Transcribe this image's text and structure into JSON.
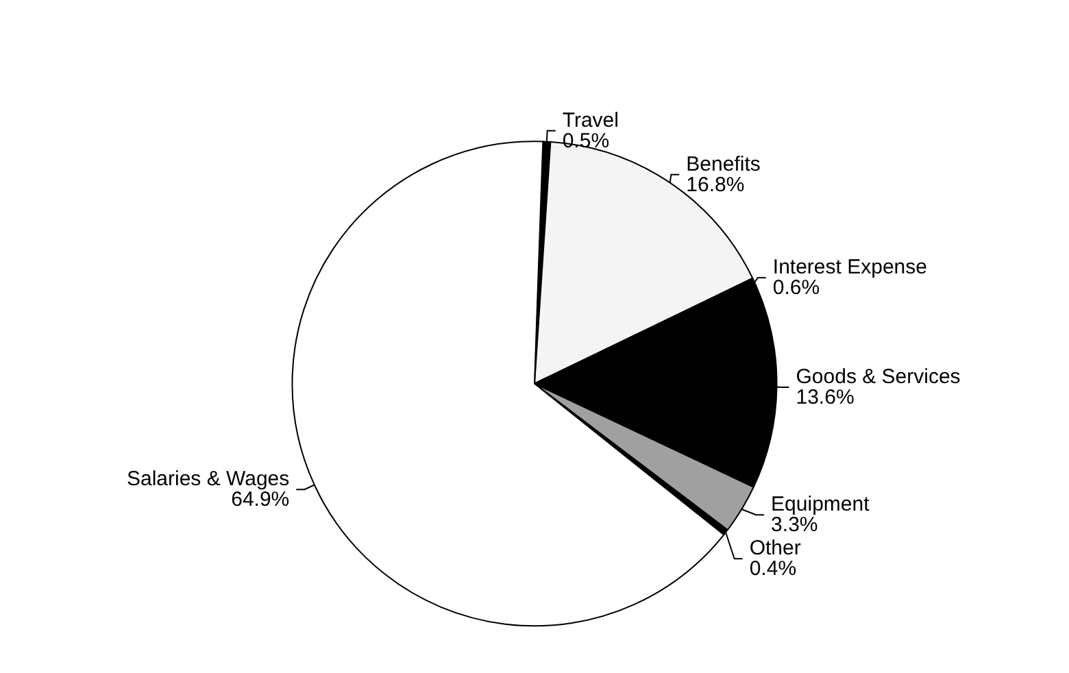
{
  "chart_data": {
    "type": "pie",
    "categories": [
      "Travel",
      "Benefits",
      "Interest Expense",
      "Goods & Services",
      "Equipment",
      "Other",
      "Salaries & Wages"
    ],
    "values": [
      0.5,
      16.8,
      0.6,
      13.6,
      3.3,
      0.4,
      64.9
    ],
    "value_labels": [
      "0.5%",
      "16.8%",
      "0.6%",
      "13.6%",
      "3.3%",
      "0.4%",
      "64.9%"
    ],
    "colors": [
      "#000000",
      "#f4f4f4",
      "#000000",
      "#000000",
      "#a0a0a0",
      "#000000",
      "#ffffff"
    ],
    "legend": false
  }
}
